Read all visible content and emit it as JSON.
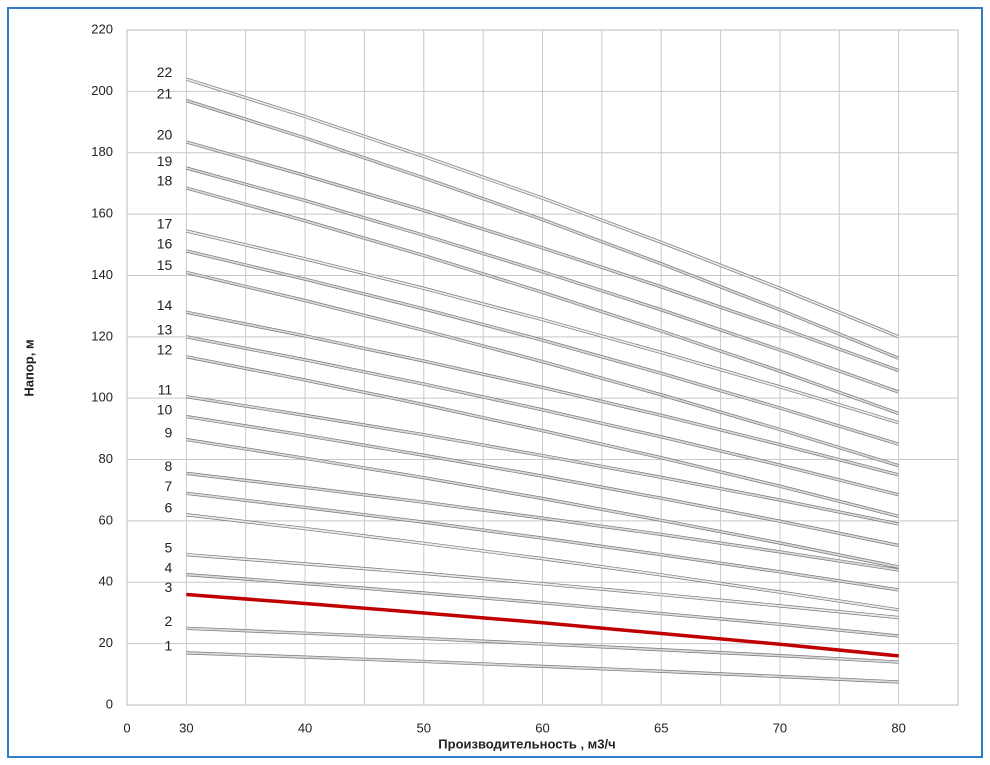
{
  "chart_data": {
    "type": "line",
    "xlabel": "Производительность , м3/ч",
    "ylabel": "Напор, м",
    "categories": [
      "0",
      "30",
      "40",
      "50",
      "60",
      "65",
      "70",
      "80"
    ],
    "ylim": [
      0,
      220
    ],
    "yticks": [
      0,
      20,
      40,
      60,
      80,
      100,
      120,
      140,
      160,
      180,
      200,
      220
    ],
    "grid": true,
    "series": [
      {
        "name": "1",
        "color": "#d9d9d9",
        "values": [
          null,
          17,
          15.6,
          14.2,
          12.6,
          11.0,
          9.3,
          7.5
        ]
      },
      {
        "name": "2",
        "color": "#d9d9d9",
        "values": [
          null,
          25,
          23.4,
          21.7,
          19.9,
          18.0,
          16.1,
          14
        ]
      },
      {
        "name": "3",
        "color": "#c00000",
        "values": [
          null,
          36,
          33.1,
          30,
          26.8,
          23.3,
          19.8,
          16
        ]
      },
      {
        "name": "4",
        "color": "#d9d9d9",
        "values": [
          null,
          42.5,
          39.6,
          36.5,
          33.3,
          29.8,
          26.3,
          22.5
        ]
      },
      {
        "name": "5",
        "color": "#ececec",
        "values": [
          null,
          49,
          46.0,
          42.9,
          39.5,
          36.0,
          32.3,
          28.5
        ]
      },
      {
        "name": "6",
        "color": "#ececec",
        "values": [
          null,
          62,
          57.5,
          52.7,
          47.7,
          42.4,
          36.8,
          31
        ]
      },
      {
        "name": "7",
        "color": "#d9d9d9",
        "values": [
          null,
          69,
          64.4,
          59.6,
          54.4,
          49.0,
          43.4,
          37.5
        ]
      },
      {
        "name": "8",
        "color": "#d9d9d9",
        "values": [
          null,
          75.5,
          70.9,
          66.1,
          60.9,
          55.6,
          49.9,
          44
        ]
      },
      {
        "name": "9",
        "color": "#d9d9d9",
        "values": [
          null,
          86.5,
          80.4,
          74.1,
          67.3,
          60.2,
          52.8,
          45
        ]
      },
      {
        "name": "10",
        "color": "#d9d9d9",
        "values": [
          null,
          94,
          87.9,
          81.4,
          74.6,
          67.4,
          59.9,
          52
        ]
      },
      {
        "name": "11",
        "color": "#d9d9d9",
        "values": [
          null,
          100.5,
          94.4,
          88.1,
          81.3,
          74.2,
          66.8,
          59
        ]
      },
      {
        "name": "12",
        "color": "#d9d9d9",
        "values": [
          null,
          113.5,
          105.9,
          97.9,
          89.4,
          80.6,
          71.3,
          61.5
        ]
      },
      {
        "name": "13",
        "color": "#d9d9d9",
        "values": [
          null,
          120,
          112.5,
          104.6,
          96.2,
          87.4,
          78.2,
          68.5
        ]
      },
      {
        "name": "14",
        "color": "#d9d9d9",
        "values": [
          null,
          128,
          120.3,
          112.1,
          103.5,
          94.4,
          84.9,
          75
        ]
      },
      {
        "name": "15",
        "color": "#d9d9d9",
        "values": [
          null,
          141,
          131.8,
          122.1,
          111.9,
          101.1,
          89.8,
          78
        ]
      },
      {
        "name": "16",
        "color": "#d9d9d9",
        "values": [
          null,
          148,
          138.8,
          129.1,
          118.9,
          108.1,
          96.8,
          85
        ]
      },
      {
        "name": "17",
        "color": "#ececec",
        "values": [
          null,
          154.5,
          145.4,
          135.8,
          125.6,
          114.9,
          103.7,
          92
        ]
      },
      {
        "name": "18",
        "color": "#d9d9d9",
        "values": [
          null,
          168.5,
          157.8,
          146.5,
          134.5,
          121.9,
          108.8,
          95
        ]
      },
      {
        "name": "19",
        "color": "#d9d9d9",
        "values": [
          null,
          175,
          164.4,
          153.1,
          141.2,
          128.8,
          115.7,
          102
        ]
      },
      {
        "name": "20",
        "color": "#d9d9d9",
        "values": [
          null,
          183.5,
          172.6,
          161.2,
          149.0,
          136.3,
          123.0,
          109
        ]
      },
      {
        "name": "21",
        "color": "#d9d9d9",
        "values": [
          null,
          197,
          184.8,
          171.8,
          158.2,
          143.8,
          128.8,
          113
        ]
      },
      {
        "name": "22",
        "color": "#ececec",
        "values": [
          null,
          204,
          191.8,
          178.8,
          165.2,
          150.8,
          135.8,
          120
        ]
      }
    ]
  }
}
